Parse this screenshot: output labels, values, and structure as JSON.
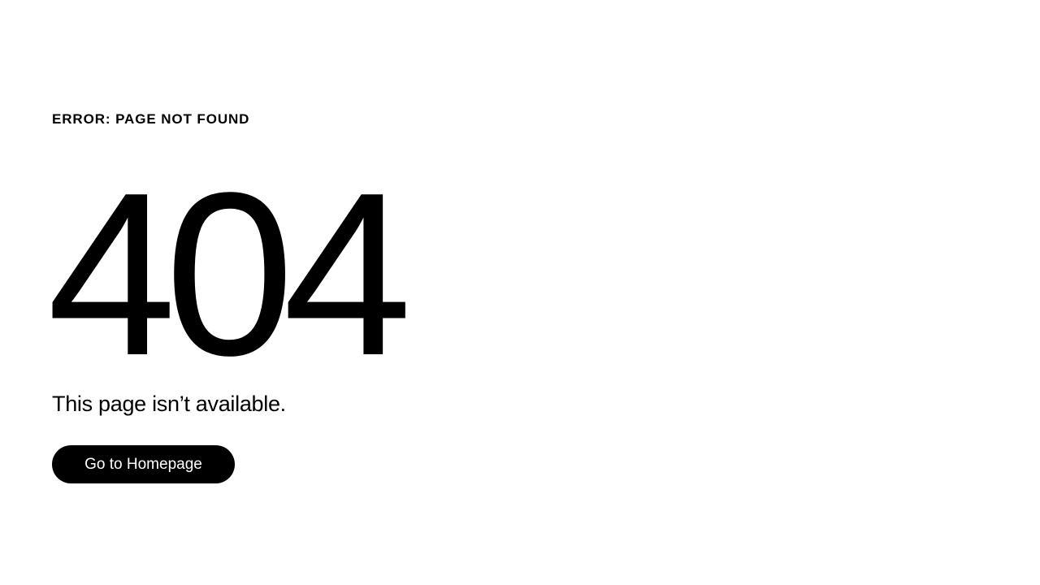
{
  "error": {
    "label": "ERROR: PAGE NOT FOUND",
    "code": "404",
    "message": "This page isn’t available."
  },
  "actions": {
    "home_button_label": "Go to Homepage"
  },
  "colors": {
    "background": "#ffffff",
    "text": "#000000",
    "button_background": "#000000",
    "button_text": "#ffffff"
  }
}
